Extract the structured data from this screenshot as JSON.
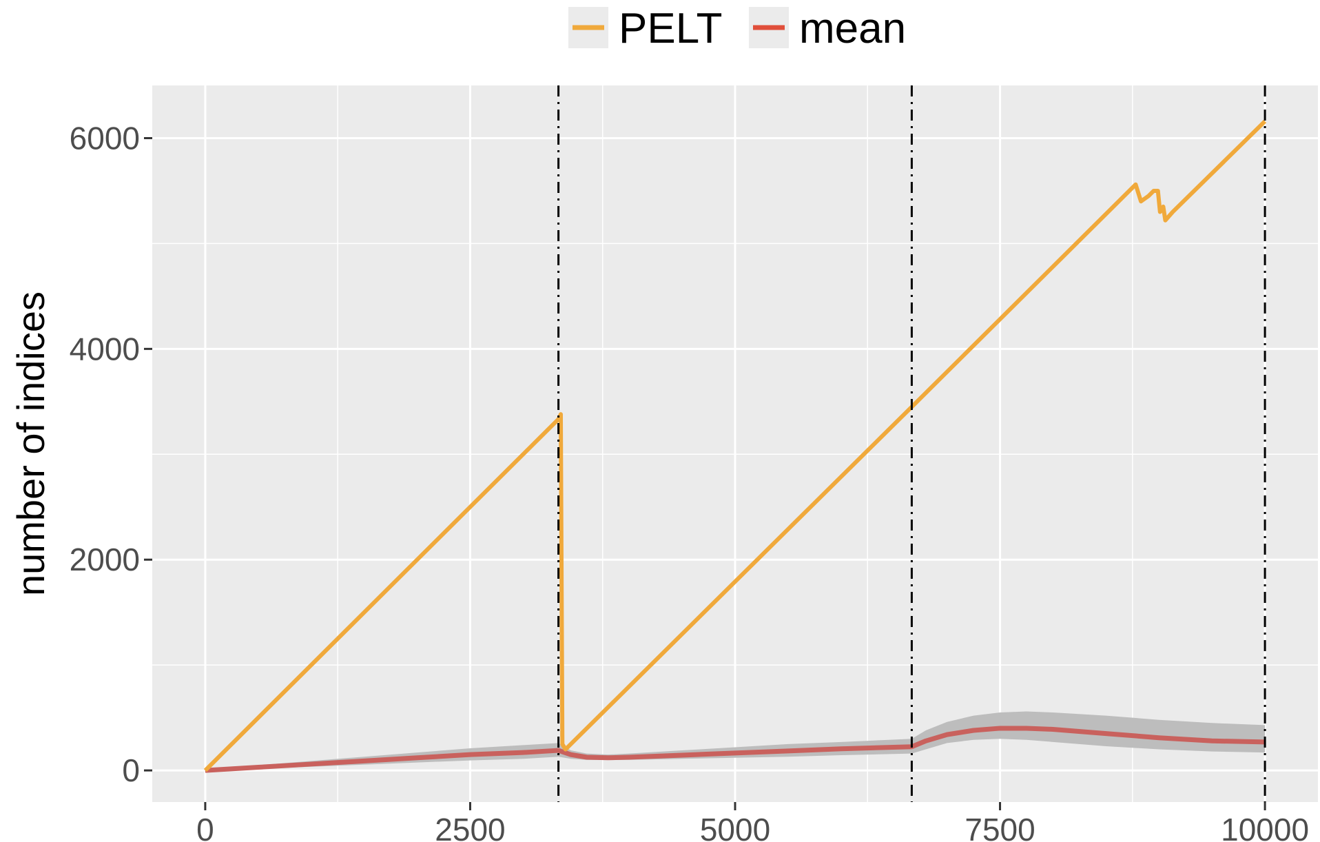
{
  "chart_data": {
    "type": "line",
    "title": "",
    "xlabel": "",
    "ylabel": "number of indices",
    "xlim": [
      -500,
      10500
    ],
    "ylim": [
      -300,
      6500
    ],
    "x_ticks": [
      0,
      2500,
      5000,
      7500,
      10000
    ],
    "y_ticks": [
      0,
      2000,
      4000,
      6000
    ],
    "grid": true,
    "legend_position": "top",
    "colors": {
      "panel": "#ebebeb",
      "grid": "#ffffff",
      "PELT": "#f0a93b",
      "mean": "#e04f3a",
      "band": "#bdbdbd",
      "changepoint": "#000000"
    },
    "changepoints": [
      3333,
      6667,
      10000
    ],
    "series": [
      {
        "name": "PELT",
        "points": [
          [
            0,
            0
          ],
          [
            3333,
            3333
          ],
          [
            3355,
            3380
          ],
          [
            3370,
            250
          ],
          [
            3400,
            200
          ],
          [
            6667,
            3450
          ],
          [
            8780,
            5560
          ],
          [
            8830,
            5400
          ],
          [
            8900,
            5450
          ],
          [
            8950,
            5500
          ],
          [
            8990,
            5500
          ],
          [
            9010,
            5300
          ],
          [
            9040,
            5350
          ],
          [
            9060,
            5220
          ],
          [
            9130,
            5300
          ],
          [
            10000,
            6160
          ]
        ]
      },
      {
        "name": "mean",
        "points": [
          [
            0,
            0
          ],
          [
            500,
            30
          ],
          [
            1000,
            60
          ],
          [
            1500,
            90
          ],
          [
            2000,
            120
          ],
          [
            2500,
            150
          ],
          [
            3000,
            170
          ],
          [
            3333,
            190
          ],
          [
            3450,
            150
          ],
          [
            3600,
            125
          ],
          [
            3800,
            120
          ],
          [
            4000,
            125
          ],
          [
            4500,
            145
          ],
          [
            5000,
            165
          ],
          [
            5500,
            185
          ],
          [
            6000,
            205
          ],
          [
            6667,
            225
          ],
          [
            6800,
            280
          ],
          [
            7000,
            340
          ],
          [
            7250,
            380
          ],
          [
            7500,
            400
          ],
          [
            7750,
            400
          ],
          [
            8000,
            390
          ],
          [
            8500,
            350
          ],
          [
            9000,
            310
          ],
          [
            9500,
            280
          ],
          [
            10000,
            270
          ]
        ],
        "band": {
          "upper": [
            [
              0,
              0
            ],
            [
              500,
              50
            ],
            [
              1000,
              90
            ],
            [
              1500,
              130
            ],
            [
              2000,
              170
            ],
            [
              2500,
              210
            ],
            [
              3000,
              240
            ],
            [
              3333,
              260
            ],
            [
              3450,
              190
            ],
            [
              3600,
              160
            ],
            [
              3800,
              150
            ],
            [
              4000,
              160
            ],
            [
              4500,
              190
            ],
            [
              5000,
              220
            ],
            [
              5500,
              250
            ],
            [
              6000,
              270
            ],
            [
              6667,
              300
            ],
            [
              6800,
              380
            ],
            [
              7000,
              460
            ],
            [
              7250,
              520
            ],
            [
              7500,
              550
            ],
            [
              7750,
              560
            ],
            [
              8000,
              550
            ],
            [
              8500,
              520
            ],
            [
              9000,
              480
            ],
            [
              9500,
              450
            ],
            [
              10000,
              430
            ]
          ],
          "lower": [
            [
              0,
              0
            ],
            [
              500,
              15
            ],
            [
              1000,
              35
            ],
            [
              1500,
              55
            ],
            [
              2000,
              75
            ],
            [
              2500,
              95
            ],
            [
              3000,
              110
            ],
            [
              3333,
              130
            ],
            [
              3450,
              110
            ],
            [
              3600,
              100
            ],
            [
              3800,
              100
            ],
            [
              4000,
              100
            ],
            [
              4500,
              110
            ],
            [
              5000,
              120
            ],
            [
              5500,
              130
            ],
            [
              6000,
              145
            ],
            [
              6667,
              160
            ],
            [
              6800,
              200
            ],
            [
              7000,
              260
            ],
            [
              7250,
              290
            ],
            [
              7500,
              300
            ],
            [
              7750,
              290
            ],
            [
              8000,
              270
            ],
            [
              8500,
              230
            ],
            [
              9000,
              200
            ],
            [
              9500,
              180
            ],
            [
              10000,
              170
            ]
          ]
        }
      }
    ]
  }
}
